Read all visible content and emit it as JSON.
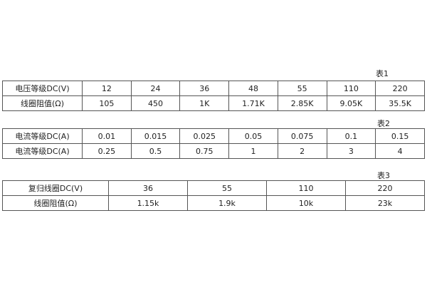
{
  "table1": {
    "caption": "表1",
    "rows": [
      [
        "电压等级DC(V)",
        "12",
        "24",
        "36",
        "48",
        "55",
        "110",
        "220"
      ],
      [
        "线圈阻值(Ω)",
        "105",
        "450",
        "1K",
        "1.71K",
        "2.85K",
        "9.05K",
        "35.5K"
      ]
    ]
  },
  "table2": {
    "caption": "表2",
    "rows": [
      [
        "电流等级DC(A)",
        "0.01",
        "0.015",
        "0.025",
        "0.05",
        "0.075",
        "0.1",
        "0.15"
      ],
      [
        "电流等级DC(A)",
        "0.25",
        "0.5",
        "0.75",
        "1",
        "2",
        "3",
        "4"
      ]
    ]
  },
  "table3": {
    "caption": "表3",
    "rows": [
      [
        "复归线圈DC(V)",
        "36",
        "55",
        "110",
        "220"
      ],
      [
        "线圈阻值(Ω)",
        "1.15k",
        "1.9k",
        "10k",
        "23k"
      ]
    ]
  }
}
